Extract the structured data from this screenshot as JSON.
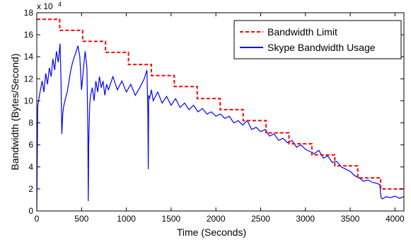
{
  "chart_data": {
    "type": "line",
    "xlabel": "Time (Seconds)",
    "ylabel": "Bandwidth (Bytes/Second)",
    "xlim": [
      0,
      4100
    ],
    "ylim": [
      0,
      180000
    ],
    "x_ticks": [
      0,
      500,
      1000,
      1500,
      2000,
      2500,
      3000,
      3500,
      4000
    ],
    "y_ticks": [
      0,
      20000,
      40000,
      60000,
      80000,
      100000,
      120000,
      140000,
      160000,
      180000
    ],
    "y_tick_labels": [
      "0",
      "2",
      "4",
      "6",
      "8",
      "10",
      "12",
      "14",
      "16",
      "18"
    ],
    "y_multiplier": {
      "base": "x 10",
      "exponent": "4"
    },
    "grid": false,
    "legend_position": "top-right",
    "series": [
      {
        "name": "Bandwidth Limit",
        "style": "dashed",
        "color": "#ff0000",
        "x": [
          0,
          256,
          256,
          512,
          512,
          768,
          768,
          1024,
          1024,
          1280,
          1280,
          1536,
          1536,
          1792,
          1792,
          2048,
          2048,
          2304,
          2304,
          2560,
          2560,
          2816,
          2816,
          3072,
          3072,
          3328,
          3328,
          3584,
          3584,
          3840,
          3840,
          4100
        ],
        "y": [
          174000,
          174000,
          164000,
          164000,
          154000,
          154000,
          144000,
          144000,
          133000,
          133000,
          123000,
          123000,
          113000,
          113000,
          102000,
          102000,
          92000,
          92000,
          82000,
          82000,
          71000,
          71000,
          61000,
          61000,
          51000,
          51000,
          41000,
          41000,
          30000,
          30000,
          20000,
          20000
        ]
      },
      {
        "name": "Skype Bandwidth Usage",
        "style": "solid",
        "color": "#0000ff",
        "x": [
          0,
          10,
          20,
          40,
          60,
          80,
          100,
          120,
          140,
          160,
          180,
          200,
          220,
          240,
          260,
          270,
          280,
          290,
          300,
          320,
          340,
          360,
          380,
          400,
          420,
          440,
          460,
          480,
          500,
          520,
          540,
          560,
          570,
          575,
          580,
          590,
          600,
          620,
          640,
          660,
          680,
          700,
          720,
          740,
          760,
          780,
          800,
          850,
          900,
          950,
          1000,
          1050,
          1100,
          1150,
          1200,
          1230,
          1240,
          1245,
          1250,
          1260,
          1280,
          1300,
          1350,
          1400,
          1450,
          1500,
          1550,
          1600,
          1650,
          1700,
          1750,
          1800,
          1850,
          1900,
          1950,
          2000,
          2050,
          2100,
          2150,
          2200,
          2250,
          2300,
          2350,
          2400,
          2450,
          2500,
          2550,
          2600,
          2650,
          2700,
          2750,
          2800,
          2850,
          2900,
          2950,
          3000,
          3050,
          3100,
          3150,
          3200,
          3250,
          3300,
          3350,
          3400,
          3450,
          3500,
          3550,
          3600,
          3650,
          3700,
          3750,
          3800,
          3830,
          3845,
          3860,
          3900,
          3950,
          4000,
          4050,
          4100
        ],
        "y": [
          0,
          95000,
          100000,
          110000,
          118000,
          108000,
          125000,
          115000,
          130000,
          122000,
          138000,
          128000,
          145000,
          135000,
          152000,
          120000,
          70000,
          88000,
          95000,
          102000,
          108000,
          118000,
          128000,
          135000,
          140000,
          145000,
          150000,
          140000,
          110000,
          128000,
          145000,
          130000,
          70000,
          9000,
          60000,
          95000,
          105000,
          112000,
          100000,
          118000,
          108000,
          122000,
          112000,
          118000,
          105000,
          115000,
          110000,
          122000,
          110000,
          118000,
          108000,
          115000,
          105000,
          112000,
          120000,
          128000,
          90000,
          38000,
          105000,
          102000,
          110000,
          100000,
          108000,
          98000,
          104000,
          96000,
          102000,
          94000,
          98000,
          92000,
          96000,
          90000,
          93000,
          88000,
          90000,
          86000,
          88000,
          84000,
          86000,
          80000,
          82000,
          78000,
          82000,
          74000,
          76000,
          72000,
          74000,
          68000,
          70000,
          64000,
          66000,
          62000,
          64000,
          58000,
          60000,
          56000,
          54000,
          52000,
          55000,
          48000,
          50000,
          44000,
          45000,
          40000,
          38000,
          36000,
          32000,
          30000,
          27000,
          28000,
          26000,
          25000,
          24000,
          12000,
          11000,
          13000,
          12000,
          13500,
          11500,
          13000
        ]
      }
    ]
  }
}
